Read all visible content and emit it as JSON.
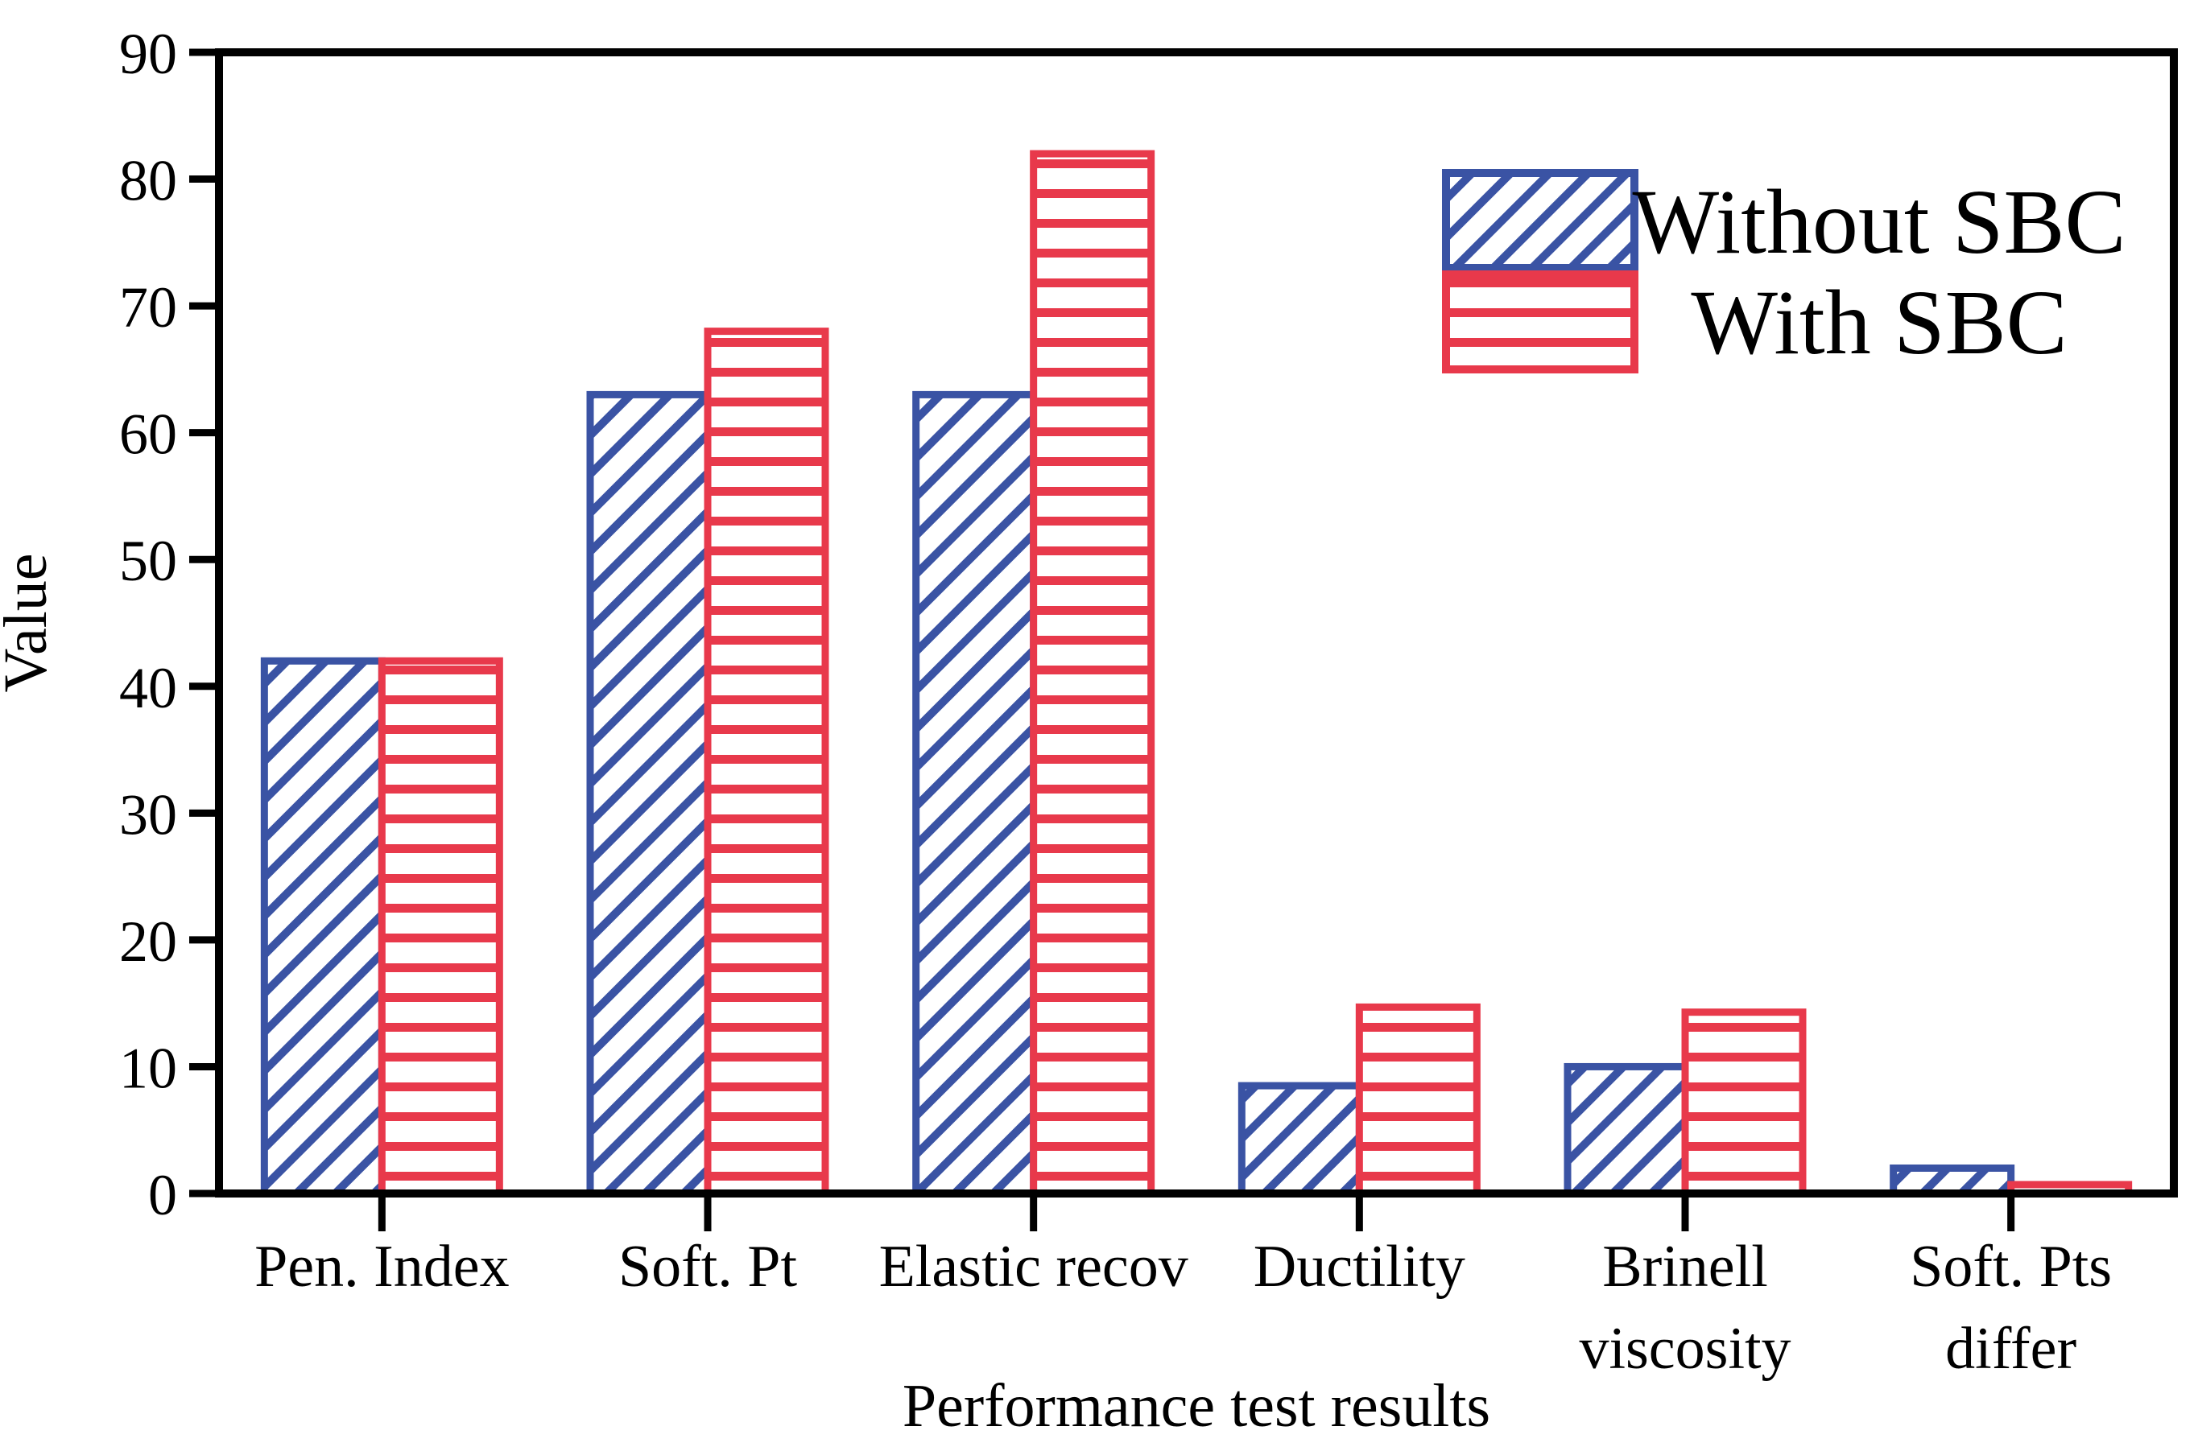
{
  "figure": {
    "background": "#ffffff",
    "axis_color": "#000000"
  },
  "chart_data": {
    "type": "bar",
    "title": "",
    "xlabel": "Performance test results",
    "ylabel": "Value",
    "ylim": [
      0,
      90
    ],
    "ytick_step": 10,
    "ytick_labels": [
      "0",
      "10",
      "20",
      "30",
      "40",
      "50",
      "60",
      "70",
      "80",
      "90"
    ],
    "grid": false,
    "legend_position": "upper-right-inside",
    "categories": [
      {
        "label": "Pen. Index",
        "lines": [
          "Pen. Index"
        ]
      },
      {
        "label": "Soft. Pt",
        "lines": [
          "Soft. Pt"
        ]
      },
      {
        "label": "Elastic recov",
        "lines": [
          "Elastic recov"
        ]
      },
      {
        "label": "Ductility",
        "lines": [
          "Ductility"
        ]
      },
      {
        "label": "Brinell viscosity",
        "lines": [
          "Brinell",
          "viscosity"
        ]
      },
      {
        "label": "Soft. Pts differ",
        "lines": [
          "Soft. Pts",
          "differ"
        ]
      }
    ],
    "series": [
      {
        "name": "Without SBC",
        "color": "#3A53A4",
        "hatch": "diagonal",
        "values": [
          42,
          63,
          63,
          8.5,
          10,
          2
        ]
      },
      {
        "name": "With SBC",
        "color": "#E8394B",
        "hatch": "horizontal",
        "values": [
          42,
          68,
          82,
          14.7,
          14.3,
          0.7
        ]
      }
    ]
  },
  "legend": {
    "entries": [
      {
        "label": "Without SBC",
        "swatch": "blue-diagonal-hatch-swatch"
      },
      {
        "label": "With SBC",
        "swatch": "red-horizontal-hatch-swatch"
      }
    ]
  }
}
